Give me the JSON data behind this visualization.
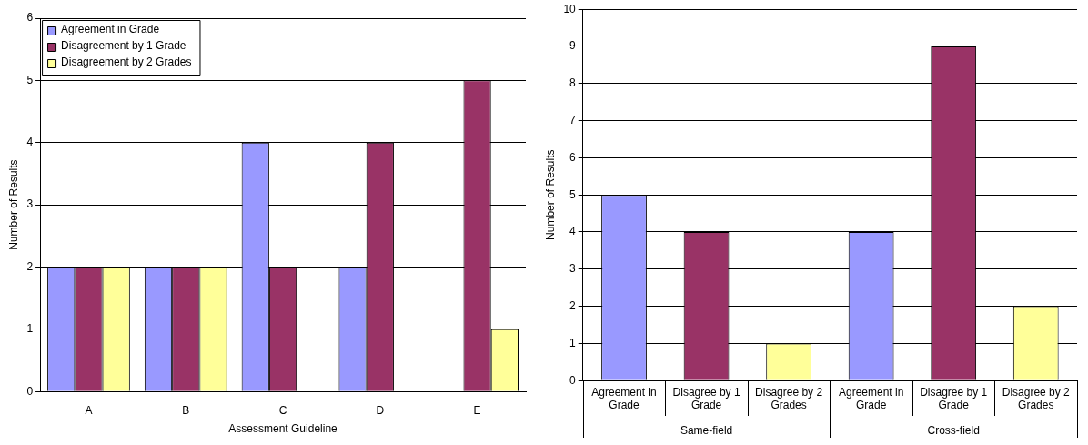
{
  "chart_data": [
    {
      "type": "bar",
      "xlabel": "Assessment Guideline",
      "ylabel": "Number of Results",
      "categories": [
        "A",
        "B",
        "C",
        "D",
        "E"
      ],
      "series": [
        {
          "name": "Agreement in Grade",
          "color": "#9999ff",
          "values": [
            2,
            2,
            4,
            2,
            0
          ]
        },
        {
          "name": "Disagreement by 1 Grade",
          "color": "#993366",
          "values": [
            2,
            2,
            2,
            4,
            5
          ]
        },
        {
          "name": "Disagreement by 2 Grades",
          "color": "#ffff99",
          "values": [
            2,
            2,
            0,
            0,
            1
          ]
        }
      ],
      "ylim": [
        0,
        6
      ],
      "yticks": [
        0,
        1,
        2,
        3,
        4,
        5,
        6
      ],
      "grid": "y",
      "legend": "top left"
    },
    {
      "type": "bar",
      "ylabel": "Number of Results",
      "categories": [
        "Agreement in Grade",
        "Disagree by 1 Grade",
        "Disagree by 2 Grades",
        "Agreement in Grade",
        "Disagree by 1 Grade",
        "Disagree by 2 Grades"
      ],
      "values": [
        5,
        4,
        1,
        4,
        9,
        2
      ],
      "colors": [
        "#9999ff",
        "#993366",
        "#ffff99",
        "#9999ff",
        "#993366",
        "#ffff99"
      ],
      "annotations": [
        "Same-field",
        "Cross-field"
      ],
      "ylim": [
        0,
        10
      ],
      "yticks": [
        0,
        1,
        2,
        3,
        4,
        5,
        6,
        7,
        8,
        9,
        10
      ],
      "grid": "y"
    }
  ]
}
